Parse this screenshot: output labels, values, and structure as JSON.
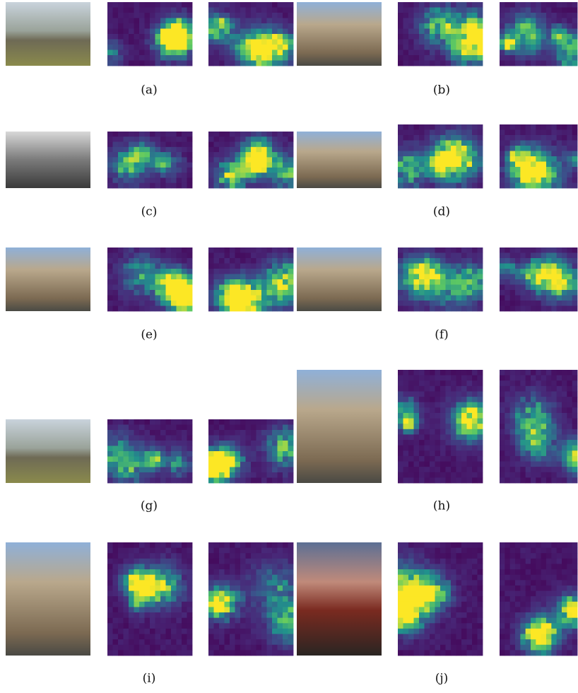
{
  "figure": {
    "panel_labels": [
      "(a)",
      "(b)",
      "(c)",
      "(d)",
      "(e)",
      "(f)",
      "(g)",
      "(h)",
      "(i)",
      "(j)"
    ]
  }
}
